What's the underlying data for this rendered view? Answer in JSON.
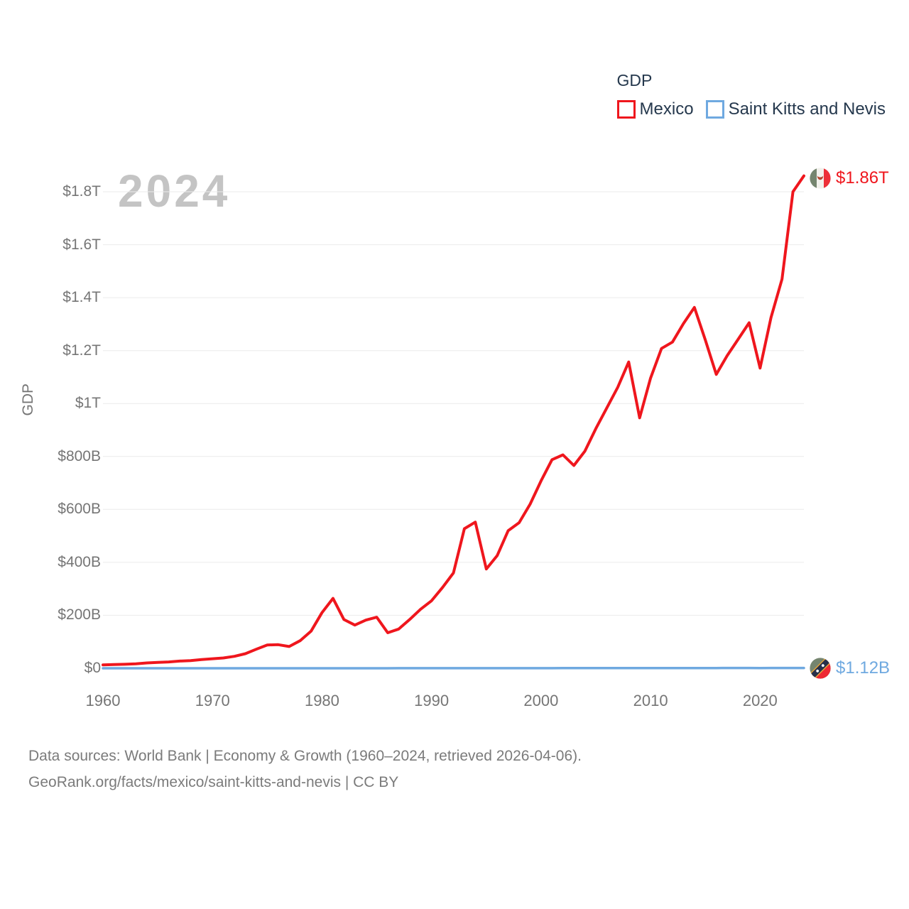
{
  "legend": {
    "title": "GDP",
    "items": [
      {
        "label": "Mexico",
        "color": "#ef161d"
      },
      {
        "label": "Saint Kitts and Nevis",
        "color": "#6fa9e0"
      }
    ]
  },
  "watermark": "2024",
  "end_labels": [
    {
      "series": "Mexico",
      "value_text": "$1.86T",
      "color": "#ef161d",
      "flag": "mexico-flag"
    },
    {
      "series": "Saint Kitts and Nevis",
      "value_text": "$1.12B",
      "color": "#6fa9e0",
      "flag": "saint-kitts-and-nevis-flag"
    }
  ],
  "footer": {
    "line1": "Data sources: World Bank | Economy & Growth (1960–2024, retrieved 2026-04-06).",
    "line2": "GeoRank.org/facts/mexico/saint-kitts-and-nevis | CC BY"
  },
  "chart_data": {
    "type": "line",
    "title": "GDP",
    "ylabel": "GDP",
    "xlabel": "",
    "units": "USD billions",
    "grid": "horizontal",
    "legend_position": "top-right",
    "ylim": [
      0,
      1900
    ],
    "x_range": [
      1960,
      2024
    ],
    "x_ticks": [
      1960,
      1970,
      1980,
      1990,
      2000,
      2010,
      2020
    ],
    "y_ticks": [
      {
        "value": 0,
        "label": "$0"
      },
      {
        "value": 200,
        "label": "$200B"
      },
      {
        "value": 400,
        "label": "$400B"
      },
      {
        "value": 600,
        "label": "$600B"
      },
      {
        "value": 800,
        "label": "$800B"
      },
      {
        "value": 1000,
        "label": "$1T"
      },
      {
        "value": 1200,
        "label": "$1.2T"
      },
      {
        "value": 1400,
        "label": "$1.4T"
      },
      {
        "value": 1600,
        "label": "$1.6T"
      },
      {
        "value": 1800,
        "label": "$1.8T"
      }
    ],
    "x": [
      1960,
      1961,
      1962,
      1963,
      1964,
      1965,
      1966,
      1967,
      1968,
      1969,
      1970,
      1971,
      1972,
      1973,
      1974,
      1975,
      1976,
      1977,
      1978,
      1979,
      1980,
      1981,
      1982,
      1983,
      1984,
      1985,
      1986,
      1987,
      1988,
      1989,
      1990,
      1991,
      1992,
      1993,
      1994,
      1995,
      1996,
      1997,
      1998,
      1999,
      2000,
      2001,
      2002,
      2003,
      2004,
      2005,
      2006,
      2007,
      2008,
      2009,
      2010,
      2011,
      2012,
      2013,
      2014,
      2015,
      2016,
      2017,
      2018,
      2019,
      2020,
      2021,
      2022,
      2023,
      2024
    ],
    "series": [
      {
        "name": "Mexico",
        "color": "#ef161d",
        "end_label": "$1.86T",
        "values": [
          13,
          14,
          15,
          17,
          20,
          22,
          24,
          27,
          29,
          33,
          36,
          39,
          45,
          55,
          72,
          88,
          89,
          82,
          104,
          140,
          210,
          264,
          184,
          163,
          182,
          193,
          134,
          148,
          184,
          223,
          255,
          305,
          360,
          527,
          552,
          375,
          426,
          520,
          550,
          620,
          708,
          788,
          806,
          766,
          820,
          905,
          983,
          1061,
          1157,
          946,
          1096,
          1208,
          1232,
          1302,
          1363,
          1240,
          1110,
          1181,
          1243,
          1305,
          1134,
          1325,
          1470,
          1800,
          1860
        ]
      },
      {
        "name": "Saint Kitts and Nevis",
        "color": "#6fa9e0",
        "end_label": "$1.12B",
        "values": [
          0.013,
          0.013,
          0.014,
          0.015,
          0.016,
          0.017,
          0.018,
          0.019,
          0.021,
          0.022,
          0.024,
          0.027,
          0.03,
          0.034,
          0.04,
          0.044,
          0.048,
          0.052,
          0.058,
          0.064,
          0.068,
          0.075,
          0.082,
          0.089,
          0.1,
          0.115,
          0.131,
          0.148,
          0.167,
          0.185,
          0.205,
          0.22,
          0.238,
          0.252,
          0.266,
          0.276,
          0.292,
          0.312,
          0.33,
          0.35,
          0.374,
          0.394,
          0.408,
          0.426,
          0.46,
          0.502,
          0.556,
          0.61,
          0.656,
          0.646,
          0.666,
          0.7,
          0.72,
          0.748,
          0.8,
          0.85,
          0.9,
          0.94,
          1.0,
          1.05,
          0.93,
          0.96,
          1.05,
          1.08,
          1.12
        ]
      }
    ]
  }
}
